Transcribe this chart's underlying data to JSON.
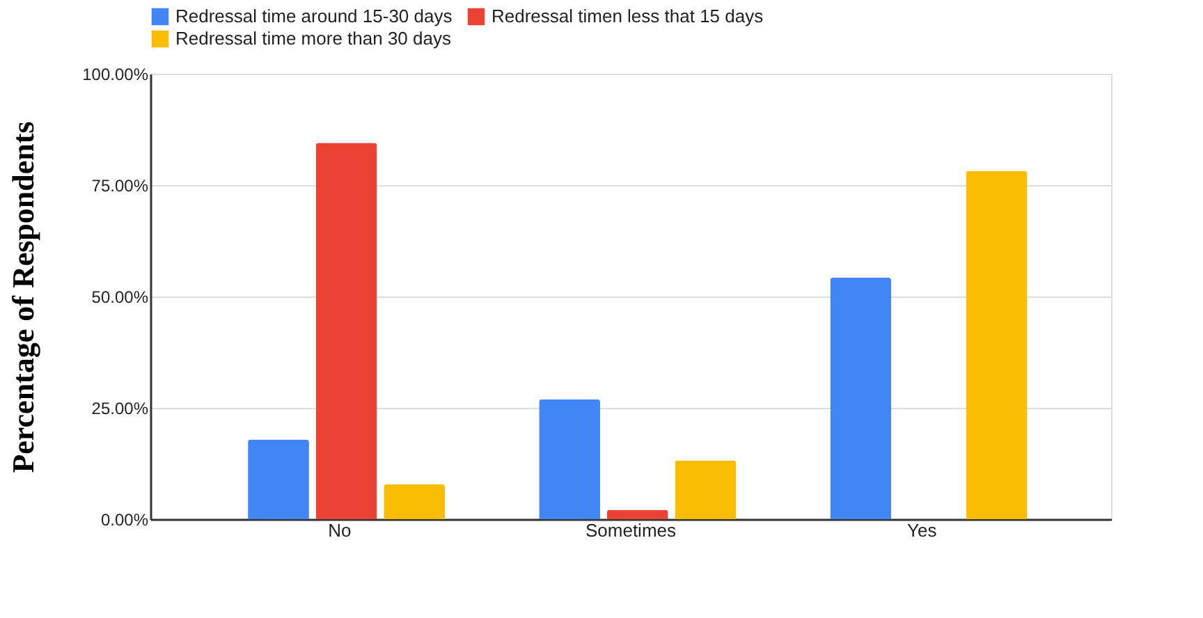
{
  "chart_data": {
    "type": "bar",
    "ylabel": "Percentage of Respondents",
    "categories": [
      "No",
      "Sometimes",
      "Yes"
    ],
    "series": [
      {
        "name": "Redressal time around 15-30 days",
        "color": "#4285f4",
        "values": [
          17.9,
          26.9,
          54.2
        ]
      },
      {
        "name": "Redressal timen less that 15 days",
        "color": "#ea4335",
        "values": [
          84.5,
          2.1,
          0
        ]
      },
      {
        "name": "Redressal time more than 30 days",
        "color": "#fbbc04",
        "values": [
          7.8,
          13.2,
          78.2
        ]
      }
    ],
    "ylim": [
      0,
      100
    ],
    "yticks": [
      {
        "value": 0,
        "label": "0.00%"
      },
      {
        "value": 25,
        "label": "25.00%"
      },
      {
        "value": 50,
        "label": "50.00%"
      },
      {
        "value": 75,
        "label": "75.00%"
      },
      {
        "value": 100,
        "label": "100.00%"
      }
    ],
    "grid": "y",
    "legend": "top"
  }
}
